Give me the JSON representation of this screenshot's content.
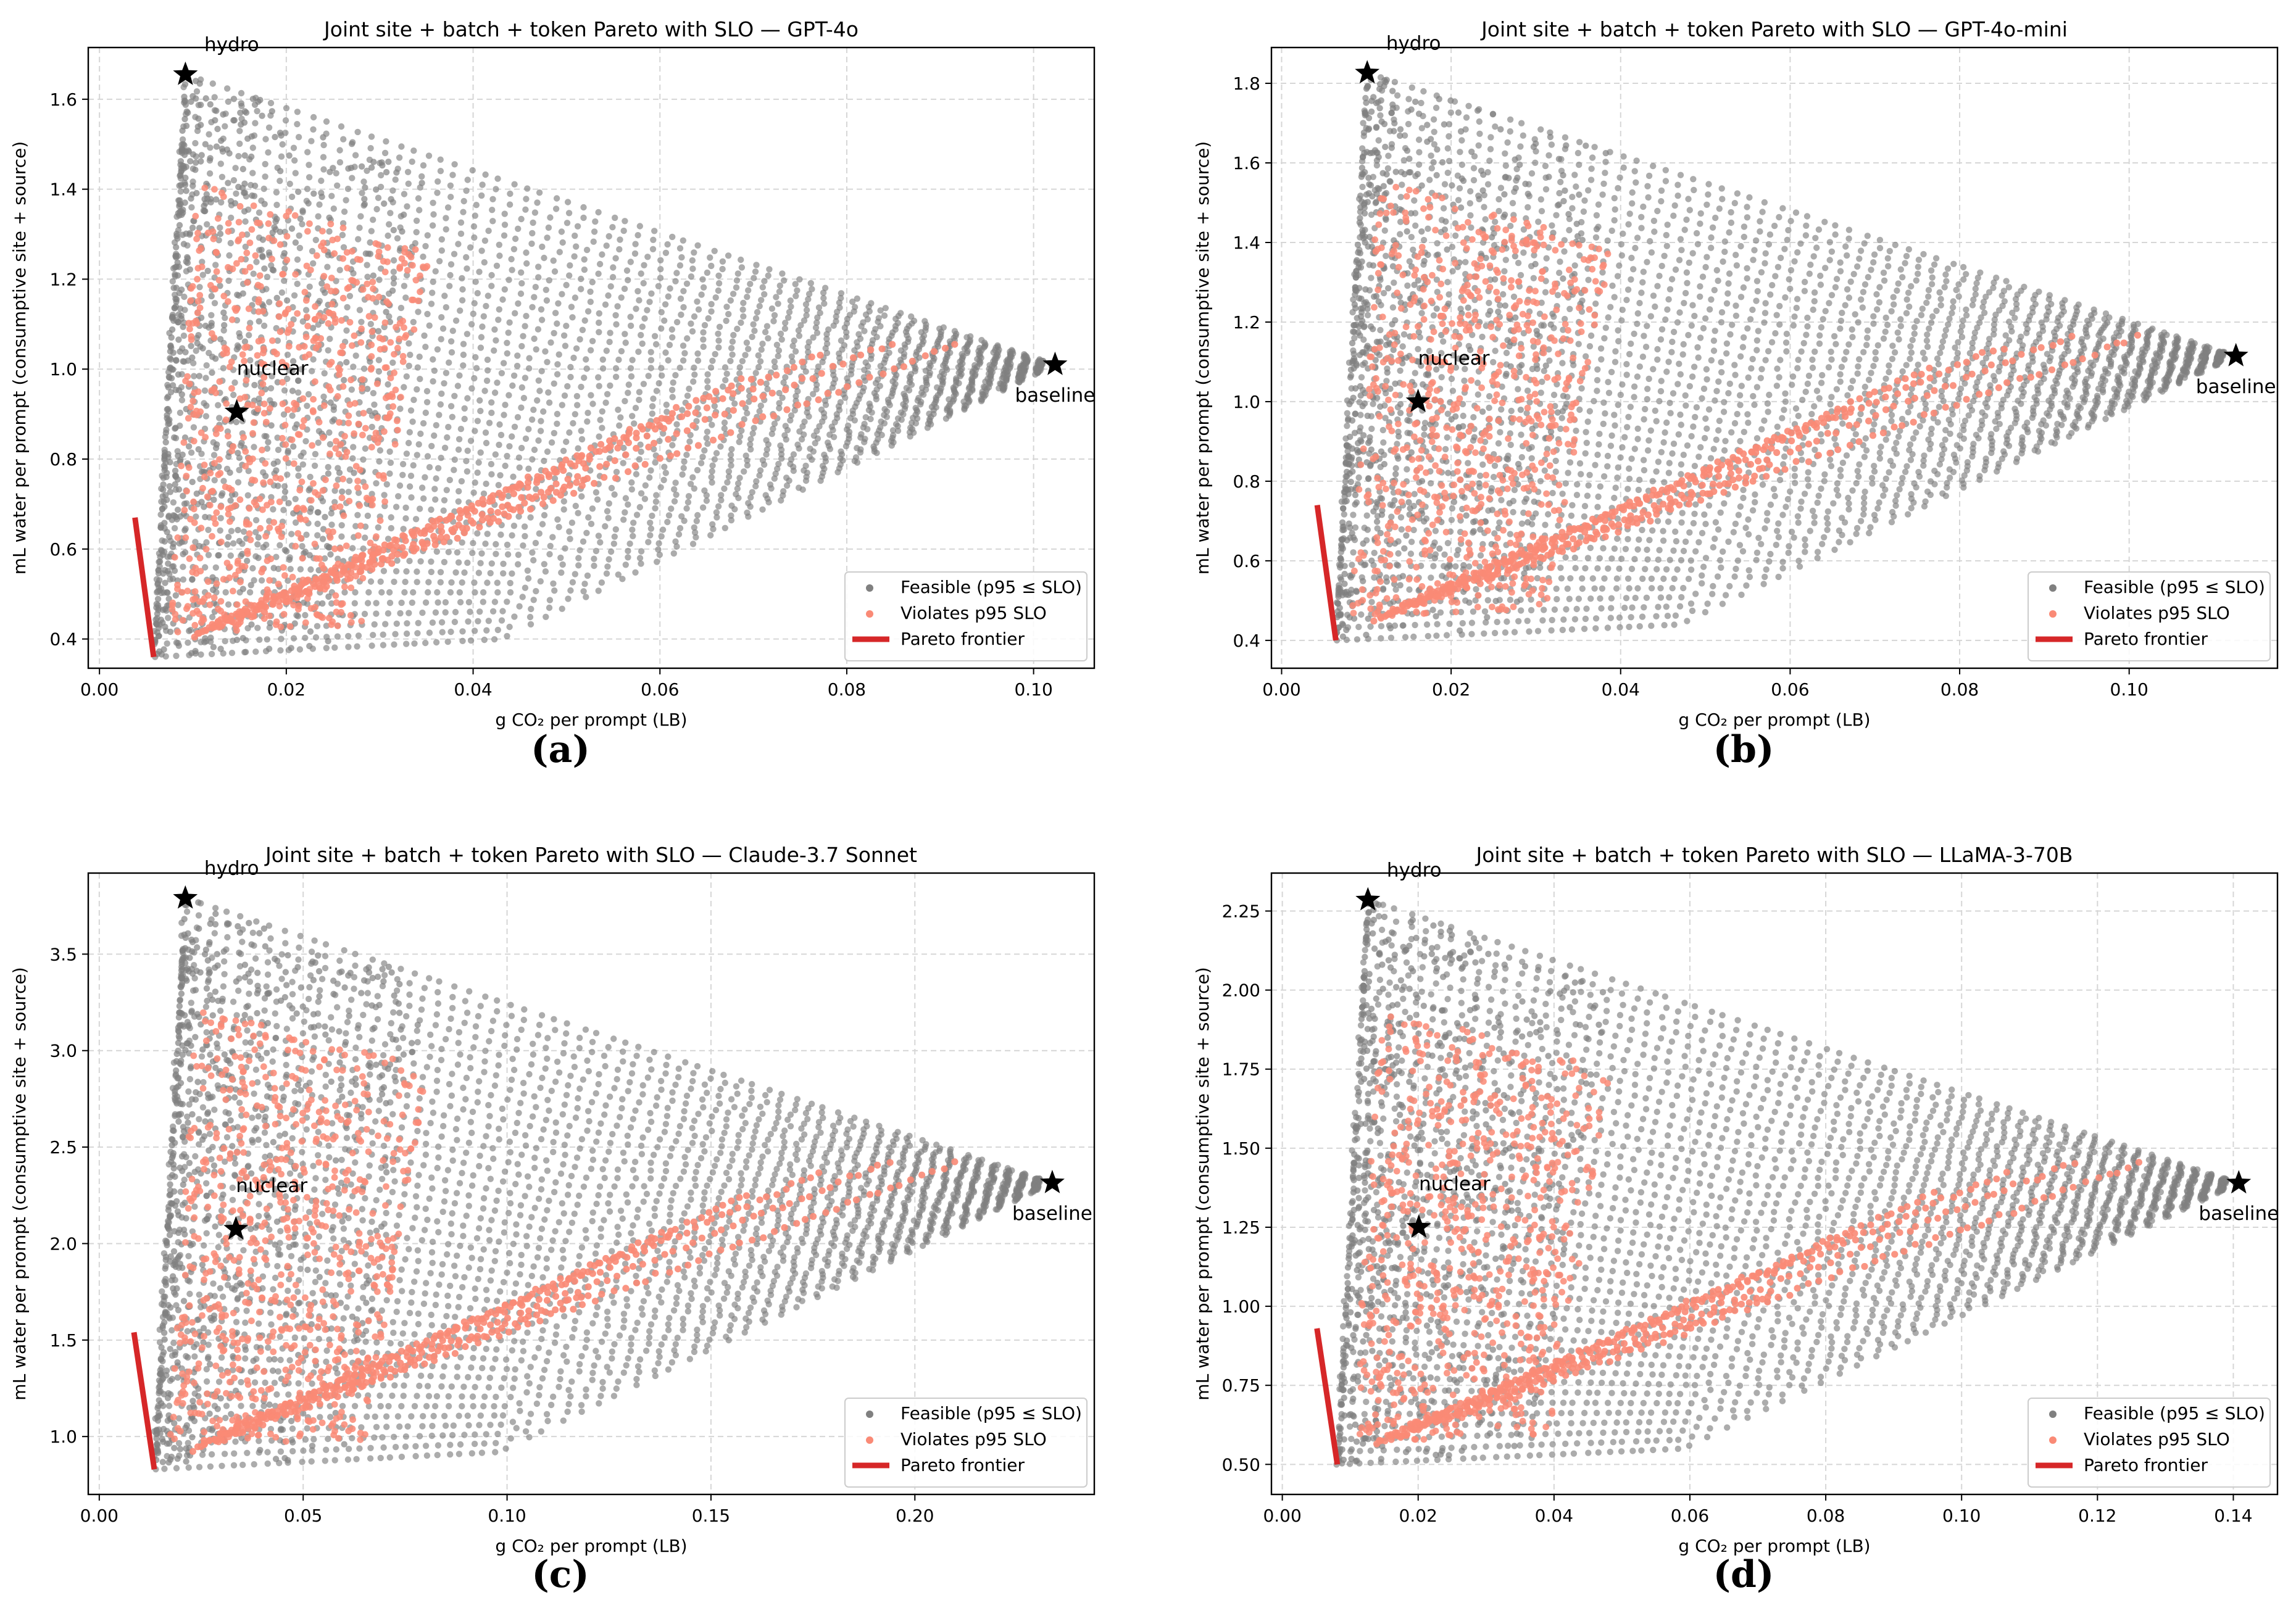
{
  "figure": {
    "xlabel": "g CO₂ per prompt (LB)",
    "ylabel": "mL water per prompt (consumptive site + source)",
    "legend": {
      "feasible": "Feasible (p95 ≤ SLO)",
      "violates": "Violates p95 SLO",
      "pareto": "Pareto frontier"
    },
    "colors": {
      "feasible": "#808080",
      "violates": "#fa8a76",
      "pareto": "#d62728",
      "marker": "#000000"
    }
  },
  "chart_data": [
    {
      "type": "scatter",
      "caption": "(a)",
      "title": "Joint site + batch + token Pareto with SLO — GPT-4o",
      "xlim": [
        -0.0012,
        0.1065
      ],
      "ylim": [
        0.335,
        1.715
      ],
      "xticks": [
        0.0,
        0.02,
        0.04,
        0.06,
        0.08,
        0.1
      ],
      "xtick_labels": [
        "0.00",
        "0.02",
        "0.04",
        "0.06",
        "0.08",
        "0.10"
      ],
      "yticks": [
        0.4,
        0.6,
        0.8,
        1.0,
        1.2,
        1.4,
        1.6
      ],
      "ytick_labels": [
        "0.4",
        "0.6",
        "0.8",
        "1.0",
        "1.2",
        "1.4",
        "1.6"
      ],
      "pareto_frontier": [
        [
          0.0038,
          0.67
        ],
        [
          0.0058,
          0.36
        ]
      ],
      "region": {
        "hydro": [
          0.0092,
          1.655
        ],
        "baseline": [
          0.1023,
          1.01
        ],
        "bottom_left": [
          0.0058,
          0.36
        ],
        "bottom_right": [
          0.043,
          0.4
        ]
      },
      "points": [
        {
          "label": "hydro",
          "x": 0.0092,
          "y": 1.655
        },
        {
          "label": "nuclear",
          "x": 0.0147,
          "y": 0.905
        },
        {
          "label": "baseline",
          "x": 0.1023,
          "y": 1.01
        }
      ],
      "grid": true,
      "legend_position": "lower right"
    },
    {
      "type": "scatter",
      "caption": "(b)",
      "title": "Joint site + batch + token Pareto with SLO — GPT-4o-mini",
      "xlim": [
        -0.0012,
        0.1175
      ],
      "ylim": [
        0.33,
        1.89
      ],
      "xticks": [
        0.0,
        0.02,
        0.04,
        0.06,
        0.08,
        0.1
      ],
      "xtick_labels": [
        "0.00",
        "0.02",
        "0.04",
        "0.06",
        "0.08",
        "0.10"
      ],
      "yticks": [
        0.4,
        0.6,
        0.8,
        1.0,
        1.2,
        1.4,
        1.6,
        1.8
      ],
      "ytick_labels": [
        "0.4",
        "0.6",
        "0.8",
        "1.0",
        "1.2",
        "1.4",
        "1.6",
        "1.8"
      ],
      "pareto_frontier": [
        [
          0.0042,
          0.74
        ],
        [
          0.0064,
          0.4
        ]
      ],
      "region": {
        "hydro": [
          0.0101,
          1.826
        ],
        "baseline": [
          0.1126,
          1.115
        ],
        "bottom_left": [
          0.0064,
          0.4
        ],
        "bottom_right": [
          0.047,
          0.44
        ]
      },
      "points": [
        {
          "label": "hydro",
          "x": 0.0101,
          "y": 1.826
        },
        {
          "label": "nuclear",
          "x": 0.0161,
          "y": 1.0
        },
        {
          "label": "baseline",
          "x": 0.1126,
          "y": 1.115
        }
      ],
      "grid": true,
      "legend_position": "lower right"
    },
    {
      "type": "scatter",
      "caption": "(c)",
      "title": "Joint site + batch + token Pareto with SLO — Claude-3.7 Sonnet",
      "xlim": [
        -0.0027,
        0.244
      ],
      "ylim": [
        0.7,
        3.92
      ],
      "xticks": [
        0.0,
        0.05,
        0.1,
        0.15,
        0.2
      ],
      "xtick_labels": [
        "0.00",
        "0.05",
        "0.10",
        "0.15",
        "0.20"
      ],
      "yticks": [
        1.0,
        1.5,
        2.0,
        2.5,
        3.0,
        3.5
      ],
      "ytick_labels": [
        "1.0",
        "1.5",
        "2.0",
        "2.5",
        "3.0",
        "3.5"
      ],
      "pareto_frontier": [
        [
          0.0085,
          1.54
        ],
        [
          0.0135,
          0.83
        ]
      ],
      "region": {
        "hydro": [
          0.0211,
          3.79
        ],
        "baseline": [
          0.2337,
          2.315
        ],
        "bottom_left": [
          0.0135,
          0.83
        ],
        "bottom_right": [
          0.098,
          0.92
        ]
      },
      "points": [
        {
          "label": "hydro",
          "x": 0.0211,
          "y": 3.79
        },
        {
          "label": "nuclear",
          "x": 0.0335,
          "y": 2.075
        },
        {
          "label": "baseline",
          "x": 0.2337,
          "y": 2.315
        }
      ],
      "grid": true,
      "legend_position": "lower right"
    },
    {
      "type": "scatter",
      "caption": "(d)",
      "title": "Joint site + batch + token Pareto with SLO — LLaMA-3-70B",
      "xlim": [
        -0.0016,
        0.1465
      ],
      "ylim": [
        0.405,
        2.37
      ],
      "xticks": [
        0.0,
        0.02,
        0.04,
        0.06,
        0.08,
        0.1,
        0.12,
        0.14
      ],
      "xtick_labels": [
        "0.00",
        "0.02",
        "0.04",
        "0.06",
        "0.08",
        "0.10",
        "0.12",
        "0.14"
      ],
      "yticks": [
        0.5,
        0.75,
        1.0,
        1.25,
        1.5,
        1.75,
        2.0,
        2.25
      ],
      "ytick_labels": [
        "0.50",
        "0.75",
        "1.00",
        "1.25",
        "1.50",
        "1.75",
        "2.00",
        "2.25"
      ],
      "pareto_frontier": [
        [
          0.0051,
          0.93
        ],
        [
          0.0081,
          0.5
        ]
      ],
      "region": {
        "hydro": [
          0.0126,
          2.285
        ],
        "baseline": [
          0.1408,
          1.39
        ],
        "bottom_left": [
          0.0081,
          0.5
        ],
        "bottom_right": [
          0.059,
          0.55
        ]
      },
      "points": [
        {
          "label": "hydro",
          "x": 0.0126,
          "y": 2.285
        },
        {
          "label": "nuclear",
          "x": 0.0201,
          "y": 1.25
        },
        {
          "label": "baseline",
          "x": 0.1408,
          "y": 1.39
        }
      ],
      "grid": true,
      "legend_position": "lower right"
    }
  ]
}
